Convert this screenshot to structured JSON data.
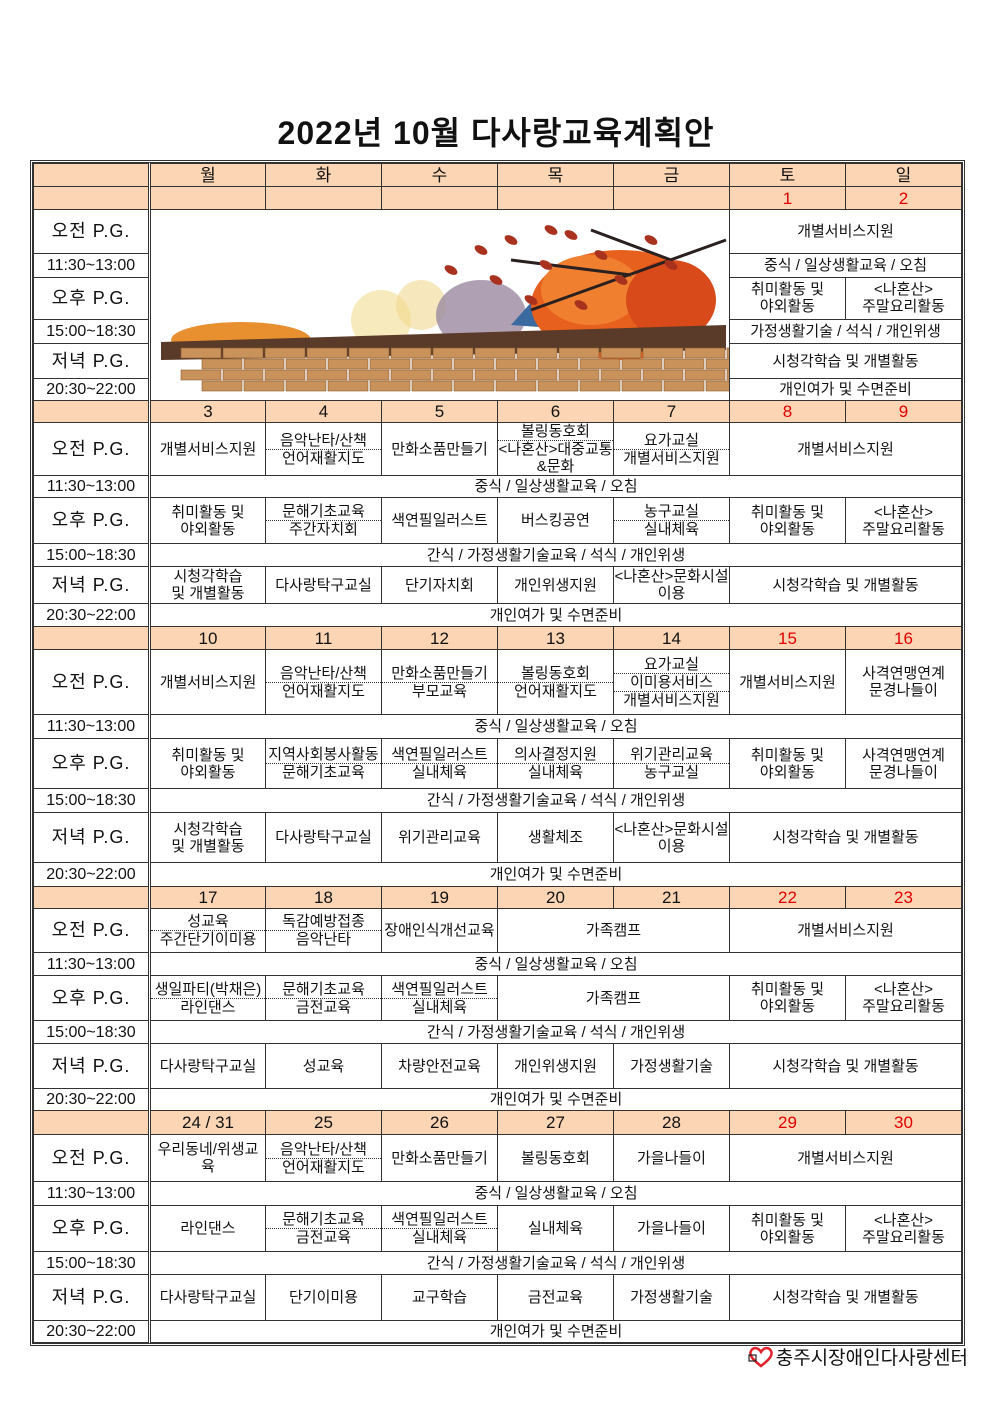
{
  "title": "2022년  10월  다사랑교육계획안",
  "weekdays": [
    "월",
    "화",
    "수",
    "목",
    "금",
    "토",
    "일"
  ],
  "row_labels": [
    "오전 P.G.",
    "11:30~13:00",
    "오후 P.G.",
    "15:00~18:30",
    "저녁 P.G.",
    "20:30~22:00"
  ],
  "colors": {
    "header_bg": "#fcd5b4",
    "weekend_date": "#e00000",
    "logo_heart": "#e0202a"
  },
  "weeks": [
    {
      "dates": [
        "",
        "",
        "",
        "",
        "",
        "1",
        "2"
      ],
      "image": "autumn-wall-illustration",
      "rows": [
        [
          {
            "s": 2,
            "t": [
              "개별서비스지원"
            ]
          }
        ],
        [
          {
            "s": 2,
            "t": [
              "중식 / 일상생활교육 / 오침"
            ]
          }
        ],
        [
          {
            "t": [
              "취미활동 및\n야외활동"
            ]
          },
          {
            "t": [
              "<나혼산>\n주말요리활동"
            ]
          }
        ],
        [
          {
            "s": 2,
            "t": [
              "가정생활기술 / 석식 / 개인위생"
            ]
          }
        ],
        [
          {
            "s": 2,
            "t": [
              "시청각학습 및 개별활동"
            ]
          }
        ],
        [
          {
            "s": 2,
            "t": [
              "개인여가 및 수면준비"
            ]
          }
        ]
      ]
    },
    {
      "dates": [
        "3",
        "4",
        "5",
        "6",
        "7",
        "8",
        "9"
      ],
      "rows": [
        [
          {
            "t": [
              "개별서비스지원"
            ]
          },
          {
            "t": [
              "음악난타/산책",
              "언어재활지도"
            ]
          },
          {
            "t": [
              "만화소품만들기"
            ]
          },
          {
            "t": [
              "볼링동호회",
              "<나혼산>대중교통&문화"
            ]
          },
          {
            "t": [
              "요가교실",
              "개별서비스지원"
            ]
          },
          {
            "s": 2,
            "t": [
              "개별서비스지원"
            ]
          }
        ],
        [
          {
            "s": 7,
            "t": [
              "중식 / 일상생활교육 / 오침"
            ]
          }
        ],
        [
          {
            "t": [
              "취미활동 및\n야외활동"
            ]
          },
          {
            "t": [
              "문해기초교육",
              "주간자치회"
            ]
          },
          {
            "t": [
              "색연필일러스트"
            ]
          },
          {
            "t": [
              "버스킹공연"
            ]
          },
          {
            "t": [
              "농구교실",
              "실내체육"
            ]
          },
          {
            "t": [
              "취미활동 및\n야외활동"
            ]
          },
          {
            "t": [
              "<나혼산>\n주말요리활동"
            ]
          }
        ],
        [
          {
            "s": 7,
            "t": [
              "간식 / 가정생활기술교육 / 석식 / 개인위생"
            ]
          }
        ],
        [
          {
            "t": [
              "시청각학습\n및 개별활동"
            ]
          },
          {
            "t": [
              "다사랑탁구교실"
            ]
          },
          {
            "t": [
              "단기자치회"
            ]
          },
          {
            "t": [
              "개인위생지원"
            ]
          },
          {
            "t": [
              "<나혼산>문화시설이용"
            ]
          },
          {
            "s": 2,
            "t": [
              "시청각학습 및 개별활동"
            ]
          }
        ],
        [
          {
            "s": 7,
            "t": [
              "개인여가 및 수면준비"
            ]
          }
        ]
      ]
    },
    {
      "dates": [
        "10",
        "11",
        "12",
        "13",
        "14",
        "15",
        "16"
      ],
      "rows": [
        [
          {
            "t": [
              "개별서비스지원"
            ]
          },
          {
            "t": [
              "음악난타/산책",
              "언어재활지도"
            ]
          },
          {
            "t": [
              "만화소품만들기",
              "부모교육"
            ]
          },
          {
            "t": [
              "볼링동호회",
              "언어재활지도"
            ]
          },
          {
            "t": [
              "요가교실",
              "이미용서비스",
              "개별서비스지원"
            ]
          },
          {
            "t": [
              "개별서비스지원"
            ]
          },
          {
            "t": [
              "사격연맹연계\n문경나들이"
            ]
          }
        ],
        [
          {
            "s": 7,
            "t": [
              "중식 / 일상생활교육 / 오침"
            ]
          }
        ],
        [
          {
            "t": [
              "취미활동 및\n야외활동"
            ]
          },
          {
            "t": [
              "지역사회봉사활동",
              "문해기초교육"
            ]
          },
          {
            "t": [
              "색연필일러스트",
              "실내체육"
            ]
          },
          {
            "t": [
              "의사결정지원",
              "실내체육"
            ]
          },
          {
            "t": [
              "위기관리교육",
              "농구교실"
            ]
          },
          {
            "t": [
              "취미활동 및\n야외활동"
            ]
          },
          {
            "t": [
              "사격연맹연계\n문경나들이"
            ]
          }
        ],
        [
          {
            "s": 7,
            "t": [
              "간식 / 가정생활기술교육 / 석식 / 개인위생"
            ]
          }
        ],
        [
          {
            "t": [
              "시청각학습\n및 개별활동"
            ]
          },
          {
            "t": [
              "다사랑탁구교실"
            ]
          },
          {
            "t": [
              "위기관리교육"
            ]
          },
          {
            "t": [
              "생활체조"
            ]
          },
          {
            "t": [
              "<나혼산>문화시설이용"
            ]
          },
          {
            "s": 2,
            "t": [
              "시청각학습 및 개별활동"
            ]
          }
        ],
        [
          {
            "s": 7,
            "t": [
              "개인여가 및 수면준비"
            ]
          }
        ]
      ]
    },
    {
      "dates": [
        "17",
        "18",
        "19",
        "20",
        "21",
        "22",
        "23"
      ],
      "rows": [
        [
          {
            "t": [
              "성교육",
              "주간단기이미용"
            ]
          },
          {
            "t": [
              "독감예방접종",
              "음악난타"
            ]
          },
          {
            "t": [
              "장애인식개선교육"
            ]
          },
          {
            "s": 2,
            "t": [
              "가족캠프"
            ]
          },
          {
            "s": 2,
            "t": [
              "개별서비스지원"
            ]
          }
        ],
        [
          {
            "s": 7,
            "t": [
              "중식 / 일상생활교육 / 오침"
            ]
          }
        ],
        [
          {
            "t": [
              "생일파티(박채은)",
              "라인댄스"
            ]
          },
          {
            "t": [
              "문해기초교육",
              "금전교육"
            ]
          },
          {
            "t": [
              "색연필일러스트",
              "실내체육"
            ]
          },
          {
            "s": 2,
            "t": [
              "가족캠프"
            ]
          },
          {
            "t": [
              "취미활동 및\n야외활동"
            ]
          },
          {
            "t": [
              "<나혼산>\n주말요리활동"
            ]
          }
        ],
        [
          {
            "s": 7,
            "t": [
              "간식 / 가정생활기술교육 / 석식 / 개인위생"
            ]
          }
        ],
        [
          {
            "t": [
              "다사랑탁구교실"
            ]
          },
          {
            "t": [
              "성교육"
            ]
          },
          {
            "t": [
              "차량안전교육"
            ]
          },
          {
            "t": [
              "개인위생지원"
            ]
          },
          {
            "t": [
              "가정생활기술"
            ]
          },
          {
            "s": 2,
            "t": [
              "시청각학습 및 개별활동"
            ]
          }
        ],
        [
          {
            "s": 7,
            "t": [
              "개인여가 및 수면준비"
            ]
          }
        ]
      ]
    },
    {
      "dates": [
        "24 / 31",
        "25",
        "26",
        "27",
        "28",
        "29",
        "30"
      ],
      "rows": [
        [
          {
            "t": [
              "우리동네/위생교육"
            ]
          },
          {
            "t": [
              "음악난타/산책",
              "언어재활지도"
            ]
          },
          {
            "t": [
              "만화소품만들기"
            ]
          },
          {
            "t": [
              "볼링동호회"
            ]
          },
          {
            "t": [
              "가을나들이"
            ]
          },
          {
            "s": 2,
            "t": [
              "개별서비스지원"
            ]
          }
        ],
        [
          {
            "s": 7,
            "t": [
              "중식 / 일상생활교육 / 오침"
            ]
          }
        ],
        [
          {
            "t": [
              "라인댄스"
            ]
          },
          {
            "t": [
              "문해기초교육",
              "금전교육"
            ]
          },
          {
            "t": [
              "색연필일러스트",
              "실내체육"
            ]
          },
          {
            "t": [
              "실내체육"
            ]
          },
          {
            "t": [
              "가을나들이"
            ]
          },
          {
            "t": [
              "취미활동 및\n야외활동"
            ]
          },
          {
            "t": [
              "<나혼산>\n주말요리활동"
            ]
          }
        ],
        [
          {
            "s": 7,
            "t": [
              "간식 / 가정생활기술교육 / 석식 / 개인위생"
            ]
          }
        ],
        [
          {
            "t": [
              "다사랑탁구교실"
            ]
          },
          {
            "t": [
              "단기이미용"
            ]
          },
          {
            "t": [
              "교구학습"
            ]
          },
          {
            "t": [
              "금전교육"
            ]
          },
          {
            "t": [
              "가정생활기술"
            ]
          },
          {
            "s": 2,
            "t": [
              "시청각학습 및 개별활동"
            ]
          }
        ],
        [
          {
            "s": 7,
            "t": [
              "개인여가 및 수면준비"
            ]
          }
        ]
      ]
    }
  ],
  "footer": {
    "logo_text": "충주시장애인다사랑센터",
    "logo_icon": "heart-icon"
  }
}
